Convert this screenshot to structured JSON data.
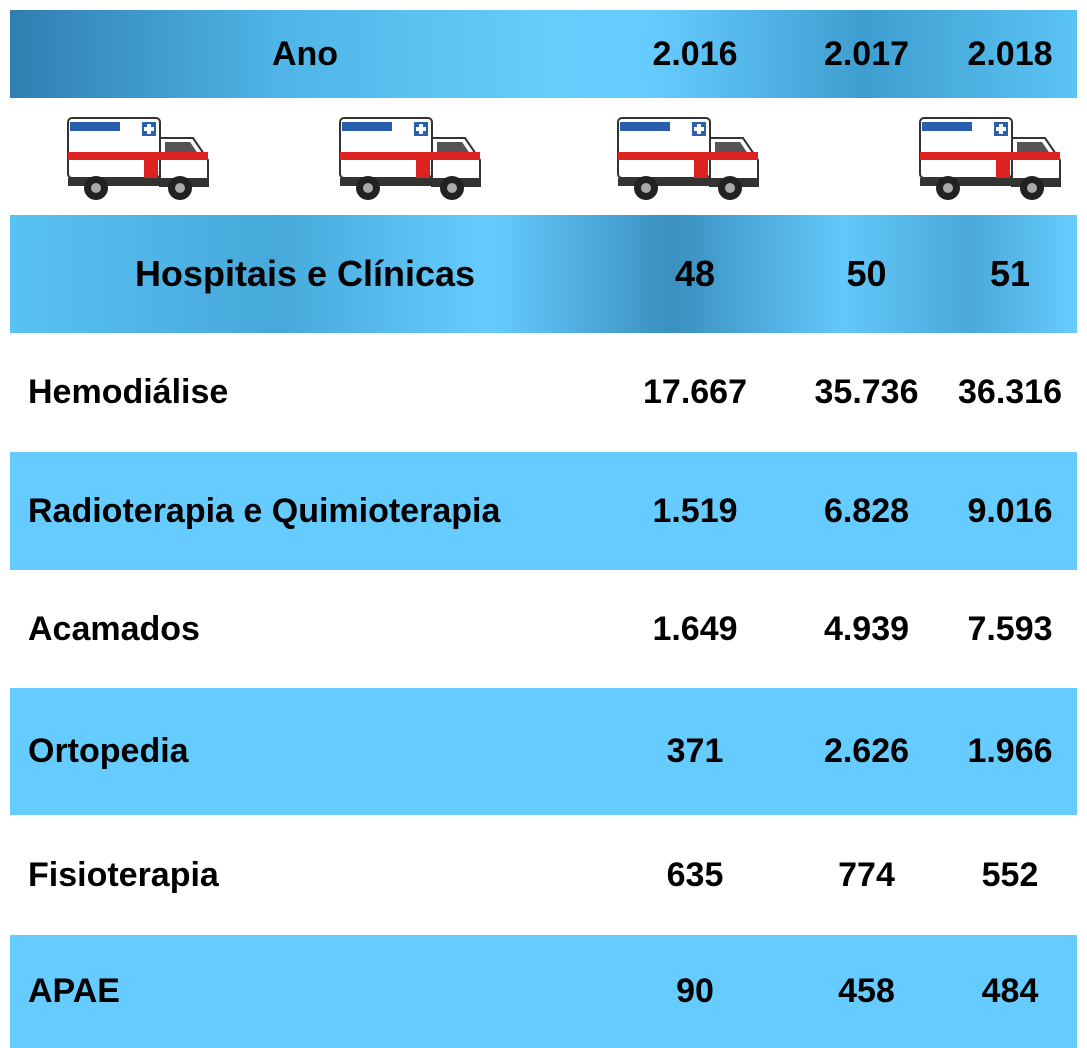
{
  "table": {
    "header": [
      "Ano",
      "2.016",
      "2.017",
      "2.018"
    ],
    "highlight": [
      "Hospitais e Clínicas",
      "48",
      "50",
      "51"
    ],
    "rows": [
      [
        "Hemodiálise",
        "17.667",
        "35.736",
        "36.316"
      ],
      [
        "Radioterapia e Quimioterapia",
        "1.519",
        "6.828",
        "9.016"
      ],
      [
        "Acamados",
        "1.649",
        "4.939",
        "7.593"
      ],
      [
        "Ortopedia",
        "371",
        "2.626",
        "1.966"
      ],
      [
        "Fisioterapia",
        "635",
        "774",
        "552"
      ],
      [
        "APAE",
        "90",
        "458",
        "484"
      ]
    ]
  }
}
